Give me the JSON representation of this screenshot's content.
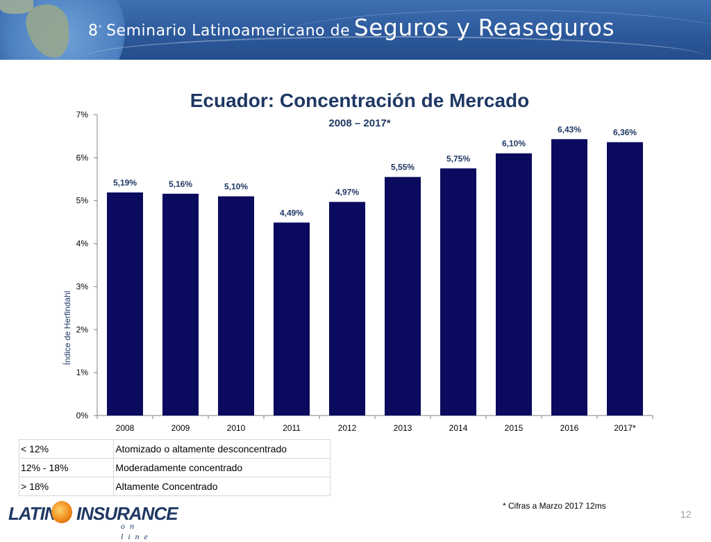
{
  "banner": {
    "ordinal": "8",
    "ordinal_suffix": "°",
    "title_small": "Seminario Latinoamericano de",
    "title_big": "Seguros y Reaseguros"
  },
  "chart_data": {
    "type": "bar",
    "title": "Ecuador: Concentración de Mercado",
    "subtitle": "2008 – 2017*",
    "ylabel": "Índice de Herfindahl",
    "xlabel": "",
    "categories": [
      "2008",
      "2009",
      "2010",
      "2011",
      "2012",
      "2013",
      "2014",
      "2015",
      "2016",
      "2017*"
    ],
    "values": [
      5.19,
      5.16,
      5.1,
      4.49,
      4.97,
      5.55,
      5.75,
      6.1,
      6.43,
      6.36
    ],
    "value_labels": [
      "5,19%",
      "5,16%",
      "5,10%",
      "4,49%",
      "4,97%",
      "5,55%",
      "5,75%",
      "6,10%",
      "6,43%",
      "6,36%"
    ],
    "ylim": [
      0,
      7
    ],
    "yticks": [
      0,
      1,
      2,
      3,
      4,
      5,
      6,
      7
    ],
    "ytick_labels": [
      "0%",
      "1%",
      "2%",
      "3%",
      "4%",
      "5%",
      "6%",
      "7%"
    ],
    "bar_color": "#0a0a5e",
    "grid": false,
    "legend": "none"
  },
  "scale_table": {
    "rows": [
      {
        "range": "< 12%",
        "description": "Atomizado o altamente desconcentrado"
      },
      {
        "range": "12% - 18%",
        "description": "Moderadamente concentrado"
      },
      {
        "range": "> 18%",
        "description": "Altamente Concentrado"
      }
    ]
  },
  "footnote": "* Cifras a Marzo 2017 12ms",
  "logo": {
    "word_left": "LATINO",
    "word_right": "INSURANCE",
    "tagline": "on line"
  },
  "page_number": "12",
  "colors": {
    "banner": "#2d5a9c",
    "title": "#1f3864",
    "bars": "#0a0a5e"
  }
}
